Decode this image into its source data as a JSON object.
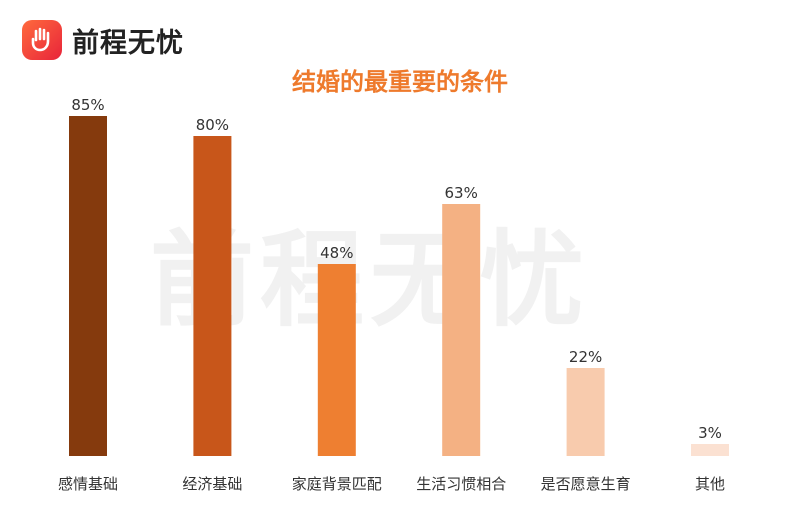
{
  "brand": {
    "name": "前程无忧",
    "logo_icon": "hand-icon",
    "colors": {
      "gradient_start": "#ff6a3d",
      "gradient_end": "#e8243a"
    }
  },
  "watermark": "前程无忧",
  "chart_data": {
    "type": "bar",
    "title": "结婚的最重要的条件",
    "xlabel": "",
    "ylabel": "",
    "ylim": [
      0,
      85
    ],
    "grid": false,
    "categories": [
      "感情基础",
      "经济基础",
      "家庭背景匹配",
      "生活习惯相合",
      "是否愿意生育",
      "其他"
    ],
    "values": [
      85,
      80,
      48,
      63,
      22,
      3
    ],
    "value_labels": [
      "85%",
      "80%",
      "48%",
      "63%",
      "22%",
      "3%"
    ],
    "colors": [
      "#853a0d",
      "#c8561a",
      "#ee7f31",
      "#f4b183",
      "#f8cbad",
      "#fbe1d2"
    ]
  }
}
